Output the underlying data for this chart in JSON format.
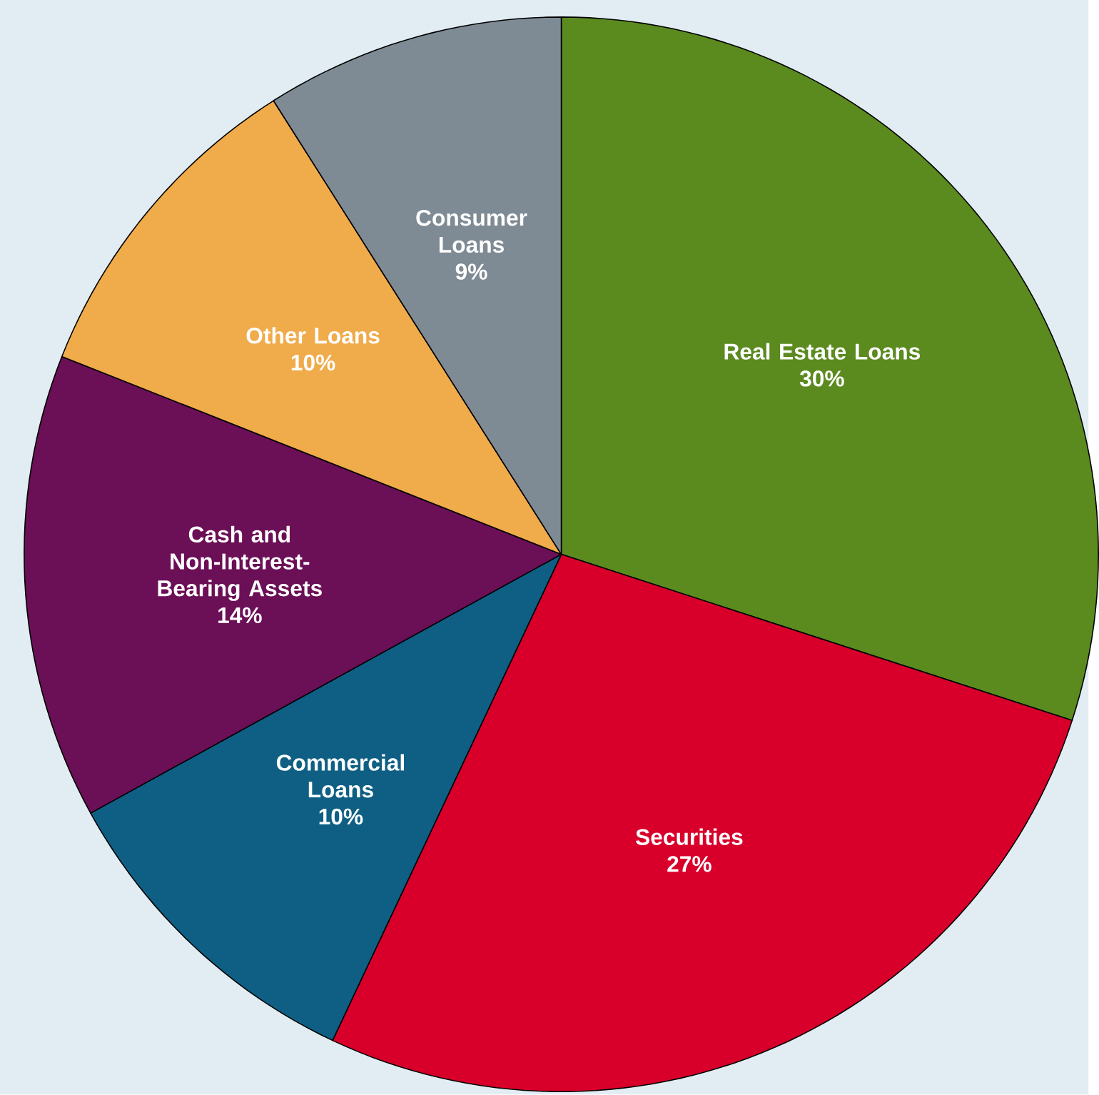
{
  "chart_data": {
    "type": "pie",
    "categories": [
      "Real Estate Loans",
      "Securities",
      "Commercial Loans",
      "Cash and Non-Interest-Bearing Assets",
      "Other Loans",
      "Consumer Loans"
    ],
    "values": [
      30,
      27,
      10,
      14,
      10,
      9
    ],
    "value_labels": [
      "30%",
      "27%",
      "10%",
      "14%",
      "10%",
      "9%"
    ],
    "colors": [
      "#5b8a1f",
      "#d8002b",
      "#0f5f84",
      "#6b0f56",
      "#f0ab4a",
      "#7f8b94"
    ]
  }
}
